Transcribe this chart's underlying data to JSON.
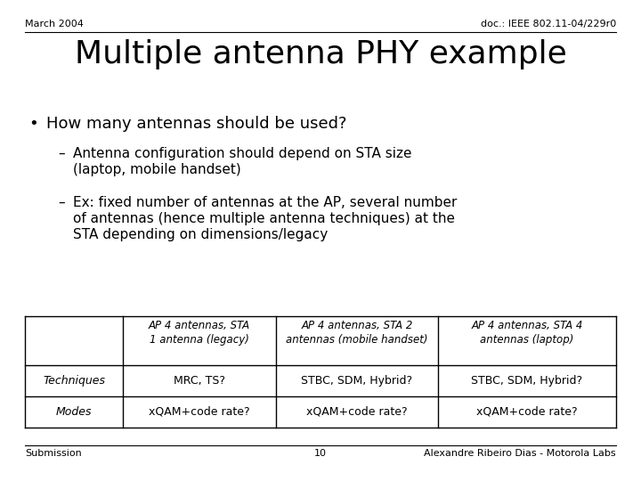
{
  "header_left": "March 2004",
  "header_right": "doc.: IEEE 802.11-04/229r0",
  "title": "Multiple antenna PHY example",
  "bullet1": "How many antennas should be used?",
  "sub1_line1": "Antenna configuration should depend on STA size",
  "sub1_line2": "(laptop, mobile handset)",
  "sub2_line1": "Ex: fixed number of antennas at the AP, several number",
  "sub2_line2": "of antennas (hence multiple antenna techniques) at the",
  "sub2_line3": "STA depending on dimensions/legacy",
  "footer_left": "Submission",
  "footer_center": "10",
  "footer_right": "Alexandre Ribeiro Dias - Motorola Labs",
  "table": {
    "col1_header": "AP 4 antennas, STA\n1 antenna (legacy)",
    "col2_header": "AP 4 antennas, STA 2\nantennas (mobile handset)",
    "col3_header": "AP 4 antennas, STA 4\nantennas (laptop)",
    "row1_label": "Techniques",
    "row1_col1": "MRC, TS?",
    "row1_col2": "STBC, SDM, Hybrid?",
    "row1_col3": "STBC, SDM, Hybrid?",
    "row2_label": "Modes",
    "row2_col1": "xQAM+code rate?",
    "row2_col2": "xQAM+code rate?",
    "row2_col3": "xQAM+code rate?"
  },
  "bg_color": "#ffffff",
  "text_color": "#000000",
  "line_color": "#000000",
  "serif_font": "Times New Roman"
}
